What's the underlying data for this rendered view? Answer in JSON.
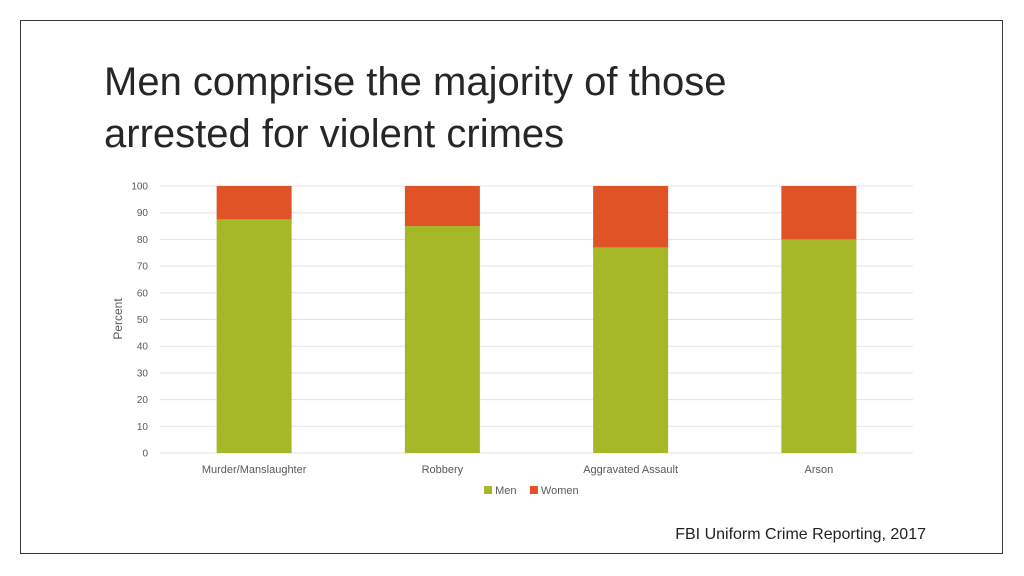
{
  "slide": {
    "title_line1": "Men comprise the majority of those",
    "title_line2": "arrested for violent crimes",
    "source": "FBI Uniform Crime Reporting, 2017"
  },
  "chart_data": {
    "type": "bar",
    "stacked": true,
    "categories": [
      "Murder/Manslaughter",
      "Robbery",
      "Aggravated Assault",
      "Arson"
    ],
    "series": [
      {
        "name": "Men",
        "values": [
          87.5,
          85,
          77,
          80
        ],
        "color": "#a6b727"
      },
      {
        "name": "Women",
        "values": [
          12.5,
          15,
          23,
          20
        ],
        "color": "#df5327"
      }
    ],
    "ylabel": "Percent",
    "xlabel": "",
    "ylim": [
      0,
      100
    ],
    "yticks": [
      "0",
      "10",
      "20",
      "30",
      "40",
      "50",
      "60",
      "70",
      "80",
      "90",
      "100"
    ],
    "grid": true,
    "legend": "bottom",
    "gridline_color": "#e3e3e3"
  }
}
